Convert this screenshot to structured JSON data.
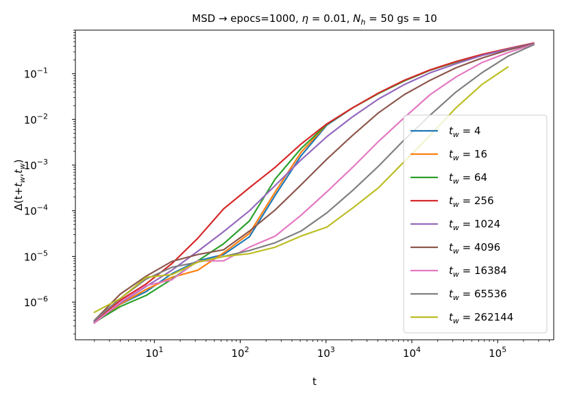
{
  "chart_data": {
    "type": "line",
    "title": "MSD → epocs=1000, η = 0.01, N_h = 50 gs = 10",
    "title_parts": {
      "prefix": "MSD → epocs=1000, ",
      "eta": "η",
      "eta_rest": " = 0.01, ",
      "n": "N",
      "n_sub": "h",
      "n_rest": " = 50 gs = 10"
    },
    "xlabel": "t",
    "ylabel": "Δ(t+t_w,t_w)",
    "ylabel_parts": {
      "prefix": "Δ(t+",
      "t1": "t",
      "sub1": "w",
      "mid": ",",
      "t2": "t",
      "sub2": "w",
      "suffix": ")"
    },
    "xscale": "log",
    "yscale": "log",
    "xlim": [
      1.2,
      450000
    ],
    "ylim": [
      1.5e-07,
      0.9
    ],
    "grid": false,
    "legend_position": "lower-right",
    "x_ticks": [
      {
        "value": 10,
        "base": "10",
        "exp": "1"
      },
      {
        "value": 100,
        "base": "10",
        "exp": "2"
      },
      {
        "value": 1000,
        "base": "10",
        "exp": "3"
      },
      {
        "value": 10000,
        "base": "10",
        "exp": "4"
      },
      {
        "value": 100000,
        "base": "10",
        "exp": "5"
      }
    ],
    "y_ticks": [
      {
        "value": 1e-06,
        "base": "10",
        "exp": "−6"
      },
      {
        "value": 1e-05,
        "base": "10",
        "exp": "−5"
      },
      {
        "value": 0.0001,
        "base": "10",
        "exp": "−4"
      },
      {
        "value": 0.001,
        "base": "10",
        "exp": "−3"
      },
      {
        "value": 0.01,
        "base": "10",
        "exp": "−2"
      },
      {
        "value": 0.1,
        "base": "10",
        "exp": "−1"
      }
    ],
    "series": [
      {
        "name": "t_w = 4",
        "label_sub": "w",
        "label_value": " = 4",
        "color": "#1f77b4",
        "x": [
          2,
          4,
          8,
          16,
          32,
          64,
          128,
          256,
          512,
          1024,
          2048,
          4096,
          8192,
          16384,
          32768,
          65536,
          131072,
          262144
        ],
        "y": [
          3.8e-07,
          9e-07,
          1.7e-06,
          4.2e-06,
          8e-06,
          1.1e-05,
          2.7e-05,
          0.00022,
          0.0016,
          0.0075,
          0.018,
          0.037,
          0.07,
          0.12,
          0.18,
          0.26,
          0.35,
          0.46
        ]
      },
      {
        "name": "t_w = 16",
        "label_sub": "w",
        "label_value": " = 16",
        "color": "#ff7f0e",
        "x": [
          2,
          4,
          8,
          16,
          32,
          64,
          128,
          256,
          512,
          1024,
          2048,
          4096,
          8192,
          16384,
          32768,
          65536,
          131072,
          262144
        ],
        "y": [
          3.5e-07,
          9e-07,
          1.9e-06,
          3.5e-06,
          5e-06,
          1.2e-05,
          3.2e-05,
          0.00026,
          0.0019,
          0.0078,
          0.018,
          0.037,
          0.07,
          0.12,
          0.18,
          0.26,
          0.35,
          0.46
        ]
      },
      {
        "name": "t_w = 64",
        "label_sub": "w",
        "label_value": " = 64",
        "color": "#2ca02c",
        "x": [
          2,
          4,
          8,
          16,
          32,
          64,
          128,
          256,
          512,
          1024,
          2048,
          4096,
          8192,
          16384,
          32768,
          65536,
          131072,
          262144
        ],
        "y": [
          3.6e-07,
          8e-07,
          1.4e-06,
          3.2e-06,
          8e-06,
          1.9e-05,
          6e-05,
          0.0005,
          0.0023,
          0.0078,
          0.018,
          0.037,
          0.07,
          0.12,
          0.18,
          0.26,
          0.35,
          0.46
        ]
      },
      {
        "name": "t_w = 256",
        "label_sub": "w",
        "label_value": " = 256",
        "color": "#d62728",
        "x": [
          2,
          4,
          8,
          16,
          32,
          64,
          128,
          256,
          512,
          1024,
          2048,
          4096,
          8192,
          16384,
          32768,
          65536,
          131072,
          262144
        ],
        "y": [
          3.6e-07,
          1.1e-06,
          2.5e-06,
          7e-06,
          2.5e-05,
          0.00011,
          0.00032,
          0.0009,
          0.0029,
          0.008,
          0.018,
          0.038,
          0.072,
          0.122,
          0.185,
          0.265,
          0.355,
          0.47
        ]
      },
      {
        "name": "t_w = 1024",
        "label_sub": "w",
        "label_value": " = 1024",
        "color": "#9467bd",
        "x": [
          2,
          4,
          8,
          16,
          32,
          64,
          128,
          256,
          512,
          1024,
          2048,
          4096,
          8192,
          16384,
          32768,
          65536,
          131072,
          262144
        ],
        "y": [
          3.6e-07,
          9.5e-07,
          2.2e-06,
          5e-06,
          1.3e-05,
          3.5e-05,
          0.0001,
          0.00036,
          0.0013,
          0.0042,
          0.0115,
          0.028,
          0.058,
          0.105,
          0.165,
          0.25,
          0.345,
          0.46
        ]
      },
      {
        "name": "t_w = 4096",
        "label_sub": "w",
        "label_value": " = 4096",
        "color": "#8c564b",
        "x": [
          2,
          4,
          8,
          16,
          32,
          64,
          128,
          256,
          512,
          1024,
          2048,
          4096,
          8192,
          16384,
          32768,
          65536,
          131072,
          262144
        ],
        "y": [
          4e-07,
          1.5e-06,
          3.7e-06,
          7.8e-06,
          1.1e-05,
          1.4e-05,
          3.6e-05,
          0.000105,
          0.00037,
          0.00135,
          0.0045,
          0.014,
          0.035,
          0.072,
          0.135,
          0.22,
          0.33,
          0.45
        ]
      },
      {
        "name": "t_w = 16384",
        "label_sub": "w",
        "label_value": " = 16384",
        "color": "#e377c2",
        "x": [
          2,
          4,
          8,
          16,
          32,
          64,
          128,
          256,
          512,
          1024,
          2048,
          4096,
          8192,
          16384,
          32768,
          65536,
          131072,
          262144
        ],
        "y": [
          3.5e-07,
          1e-06,
          2.3e-06,
          3.1e-06,
          8e-06,
          8e-06,
          1.6e-05,
          2.8e-05,
          8e-05,
          0.00026,
          0.0009,
          0.0033,
          0.011,
          0.035,
          0.085,
          0.175,
          0.29,
          0.44
        ]
      },
      {
        "name": "t_w = 65536",
        "label_sub": "w",
        "label_value": " = 65536",
        "color": "#7f7f7f",
        "x": [
          2,
          4,
          8,
          16,
          32,
          64,
          128,
          256,
          512,
          1024,
          2048,
          4096,
          8192,
          16384,
          32768,
          65536,
          131072,
          262144
        ],
        "y": [
          4e-07,
          1.2e-06,
          3.2e-06,
          5.8e-06,
          7.5e-06,
          1e-05,
          1.35e-05,
          2e-05,
          3.6e-05,
          9e-05,
          0.00028,
          0.00095,
          0.0036,
          0.0125,
          0.04,
          0.105,
          0.24,
          0.43
        ]
      },
      {
        "name": "t_w = 262144",
        "label_sub": "w",
        "label_value": " = 262144",
        "color": "#bcbd22",
        "x": [
          2,
          4,
          8,
          16,
          32,
          64,
          128,
          256,
          512,
          1024,
          2048,
          4096,
          8192,
          16384,
          32768,
          65536,
          131072
        ],
        "y": [
          6e-07,
          1.2e-06,
          3.5e-06,
          4e-06,
          7.5e-06,
          1e-05,
          1.15e-05,
          1.6e-05,
          2.8e-05,
          4.4e-05,
          0.000115,
          0.00032,
          0.0012,
          0.0045,
          0.018,
          0.058,
          0.14
        ]
      }
    ]
  }
}
